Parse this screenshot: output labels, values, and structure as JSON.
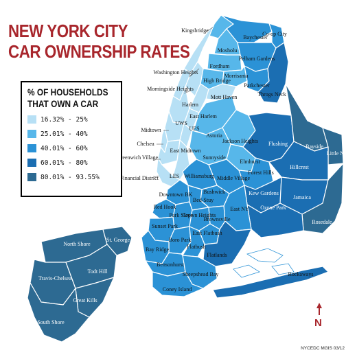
{
  "title": {
    "line1": "NEW YORK CITY",
    "line2": "CAR OWNERSHIP RATES"
  },
  "legend": {
    "title_line1": "% OF HOUSEHOLDS",
    "title_line2": "THAT OWN A CAR",
    "items": [
      {
        "label": "16.32% - 25%",
        "color": "#b7e0f5"
      },
      {
        "label": "25.01% - 40%",
        "color": "#57b7ea"
      },
      {
        "label": "40.01% - 60%",
        "color": "#2b92d6"
      },
      {
        "label": "60.01% - 80%",
        "color": "#1b6eb2"
      },
      {
        "label": "80.01% - 93.55%",
        "color": "#2d6a92"
      }
    ]
  },
  "neighborhoods": [
    "Kingsbridge",
    "Baychester",
    "Co-op City",
    "Mosholu",
    "Pelham Gardens",
    "Fordham",
    "Washington Heights",
    "Morrisania",
    "Parkchester",
    "High Bridge",
    "Throgs Neck",
    "Morningside Heights",
    "Mott Haven",
    "Harlem",
    "East Harlem",
    "UWS",
    "UES",
    "Midtown",
    "Chelsea",
    "East Midtown",
    "Greenwich Village",
    "LES",
    "Financial District",
    "Astoria",
    "Jackson Heights",
    "Flushing",
    "Bayside",
    "Little Neck",
    "Sunnyside",
    "Elmhurst",
    "Hillcrest",
    "Williamsburg",
    "Middle Village",
    "Forest Hills",
    "Downtown BK",
    "Bushwick",
    "Jamaica",
    "Bed-Stuy",
    "Kew Gardens",
    "Red Hook",
    "Park Slope",
    "Crown Heights",
    "East NY",
    "Ozone Park",
    "Rosedale",
    "Sunset Park",
    "Brownsville",
    "Boro Park",
    "East Flatbush",
    "Bay Ridge",
    "Flatbush",
    "Flatlands",
    "Bensonhurst",
    "Sheepshead Bay",
    "Coney Island",
    "Rockaways",
    "North Shore",
    "St. George",
    "Travis-Chelsea",
    "Todt Hill",
    "Great Kills",
    "South Shore"
  ],
  "compass": "N",
  "credit": "NYCEDC MGIS 03/12"
}
